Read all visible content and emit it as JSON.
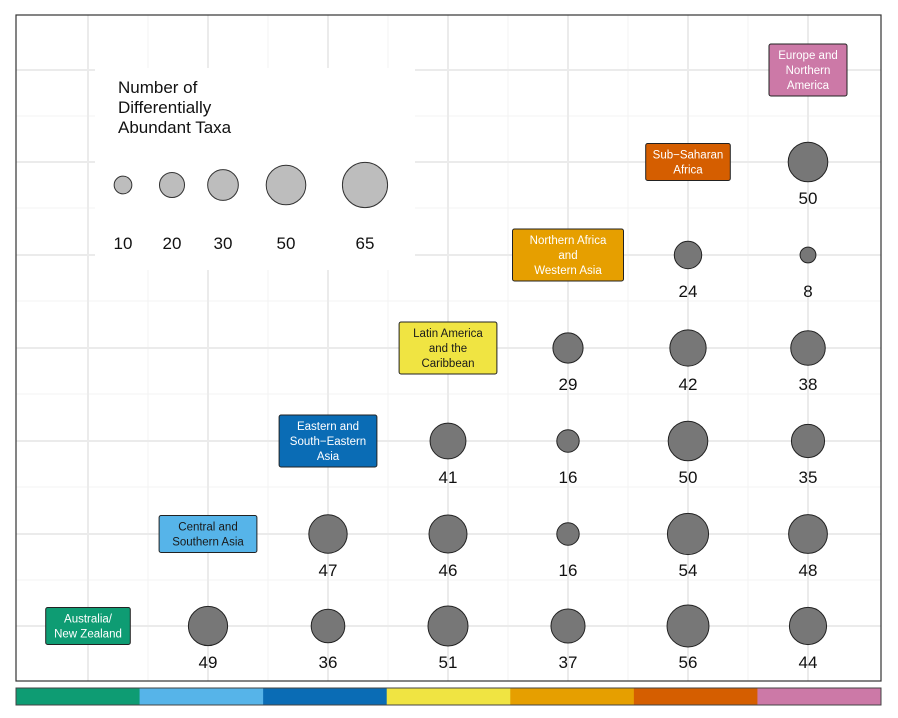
{
  "chart_data": {
    "type": "scatter",
    "description_axis": "pairwise region comparison grid (lower triangle)",
    "regions": [
      {
        "name": "Australia/ New Zealand",
        "lines": [
          "Australia/",
          "New Zealand"
        ],
        "color": "#0E9C73",
        "text_color": "#ffffff"
      },
      {
        "name": "Central and Southern Asia",
        "lines": [
          "Central and",
          "Southern Asia"
        ],
        "color": "#56B4E9",
        "text_color": "#1a1a1a"
      },
      {
        "name": "Eastern and South-Eastern Asia",
        "lines": [
          "Eastern and",
          "South−Eastern",
          "Asia"
        ],
        "color": "#0A6CB5",
        "text_color": "#ffffff"
      },
      {
        "name": "Latin America and the Caribbean",
        "lines": [
          "Latin America",
          "and the",
          "Caribbean"
        ],
        "color": "#F0E442",
        "text_color": "#1a1a1a"
      },
      {
        "name": "Northern Africa and Western Asia",
        "lines": [
          "Northern Africa",
          "and",
          "Western Asia"
        ],
        "color": "#E69F00",
        "text_color": "#ffffff"
      },
      {
        "name": "Sub-Saharan Africa",
        "lines": [
          "Sub−Saharan",
          "Africa"
        ],
        "color": "#D55E00",
        "text_color": "#ffffff"
      },
      {
        "name": "Europe and Northern America",
        "lines": [
          "Europe and",
          "Northern",
          "America"
        ],
        "color": "#CC79A7",
        "text_color": "#ffffff"
      }
    ],
    "points": [
      {
        "row": 0,
        "col": 1,
        "value": 49
      },
      {
        "row": 0,
        "col": 2,
        "value": 36
      },
      {
        "row": 0,
        "col": 3,
        "value": 51
      },
      {
        "row": 0,
        "col": 4,
        "value": 37
      },
      {
        "row": 0,
        "col": 5,
        "value": 56
      },
      {
        "row": 0,
        "col": 6,
        "value": 44
      },
      {
        "row": 1,
        "col": 2,
        "value": 47
      },
      {
        "row": 1,
        "col": 3,
        "value": 46
      },
      {
        "row": 1,
        "col": 4,
        "value": 16
      },
      {
        "row": 1,
        "col": 5,
        "value": 54
      },
      {
        "row": 1,
        "col": 6,
        "value": 48
      },
      {
        "row": 2,
        "col": 3,
        "value": 41
      },
      {
        "row": 2,
        "col": 4,
        "value": 16
      },
      {
        "row": 2,
        "col": 5,
        "value": 50
      },
      {
        "row": 2,
        "col": 6,
        "value": 35
      },
      {
        "row": 3,
        "col": 4,
        "value": 29
      },
      {
        "row": 3,
        "col": 5,
        "value": 42
      },
      {
        "row": 3,
        "col": 6,
        "value": 38
      },
      {
        "row": 4,
        "col": 5,
        "value": 24
      },
      {
        "row": 4,
        "col": 6,
        "value": 8
      },
      {
        "row": 5,
        "col": 6,
        "value": 50
      }
    ],
    "size_legend": {
      "title_lines": [
        "Number of",
        "Differentially",
        "Abundant Taxa"
      ],
      "values": [
        10,
        20,
        30,
        50,
        65
      ]
    },
    "colors": {
      "point_fill": "#777777",
      "legend_fill": "#bdbdbd",
      "grid": "#ebebeb"
    },
    "grid": true,
    "legend_placement": "top-left"
  }
}
